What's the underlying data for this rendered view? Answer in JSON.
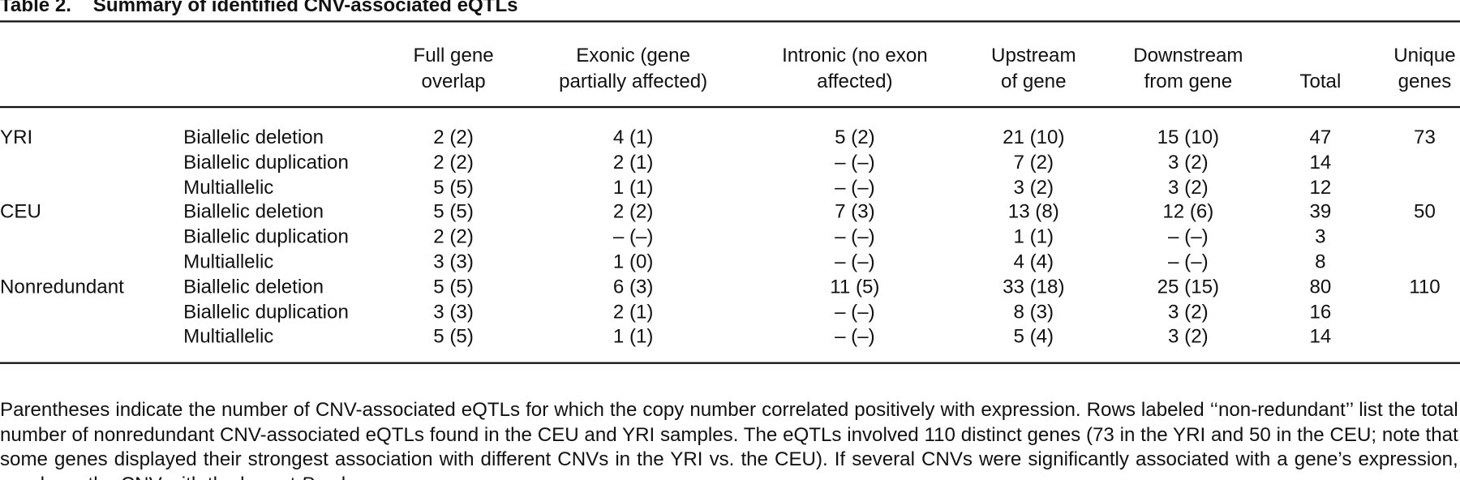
{
  "title": {
    "label": "Table 2.",
    "text": "Summary of identified CNV-associated eQTLs"
  },
  "table": {
    "header": [
      [
        "Full gene",
        "overlap"
      ],
      [
        "Exonic (gene",
        "partially affected)"
      ],
      [
        "Intronic (no exon",
        "affected)"
      ],
      [
        "Upstream",
        "of gene"
      ],
      [
        "Downstream",
        "from gene"
      ],
      [
        "Total"
      ],
      [
        "Unique",
        "genes"
      ]
    ],
    "groups": [
      {
        "name": "YRI",
        "unique_genes": "73",
        "rows": [
          {
            "type": "Biallelic deletion",
            "cells": [
              "2 (2)",
              "4 (1)",
              "5 (2)",
              "21 (10)",
              "15 (10)",
              "47"
            ]
          },
          {
            "type": "Biallelic duplication",
            "cells": [
              "2 (2)",
              "2 (1)",
              "– (–)",
              "7 (2)",
              "3 (2)",
              "14"
            ]
          },
          {
            "type": "Multiallelic",
            "cells": [
              "5 (5)",
              "1 (1)",
              "– (–)",
              "3 (2)",
              "3 (2)",
              "12"
            ]
          }
        ]
      },
      {
        "name": "CEU",
        "unique_genes": "50",
        "rows": [
          {
            "type": "Biallelic deletion",
            "cells": [
              "5 (5)",
              "2 (2)",
              "7 (3)",
              "13 (8)",
              "12 (6)",
              "39"
            ]
          },
          {
            "type": "Biallelic duplication",
            "cells": [
              "2 (2)",
              "– (–)",
              "– (–)",
              "1 (1)",
              "– (–)",
              "3"
            ]
          },
          {
            "type": "Multiallelic",
            "cells": [
              "3 (3)",
              "1 (0)",
              "– (–)",
              "4 (4)",
              "– (–)",
              "8"
            ]
          }
        ]
      },
      {
        "name": "Nonredundant",
        "unique_genes": "110",
        "rows": [
          {
            "type": "Biallelic deletion",
            "cells": [
              "5 (5)",
              "6 (3)",
              "11 (5)",
              "33 (18)",
              "25 (15)",
              "80"
            ]
          },
          {
            "type": "Biallelic duplication",
            "cells": [
              "3 (3)",
              "2 (1)",
              "– (–)",
              "8 (3)",
              "3 (2)",
              "16"
            ]
          },
          {
            "type": "Multiallelic",
            "cells": [
              "5 (5)",
              "1 (1)",
              "– (–)",
              "5 (4)",
              "3 (2)",
              "14"
            ]
          }
        ]
      }
    ]
  },
  "footnote": {
    "text": "Parentheses indicate the number of CNV-associated eQTLs for which the copy number correlated positively with expression. Rows labeled ‘‘non-redundant’’ list the total number of nonredundant CNV-associated eQTLs found in the CEU and YRI samples. The eQTLs involved 110 distinct genes (73 in the YRI and 50 in the CEU; note that some genes displayed their strongest association with different CNVs in the YRI vs. the CEU). If several CNVs were significantly associated with a gene’s expression, we chose the CNV with the lowest ",
    "italic": "P",
    "text_end": "-value."
  }
}
